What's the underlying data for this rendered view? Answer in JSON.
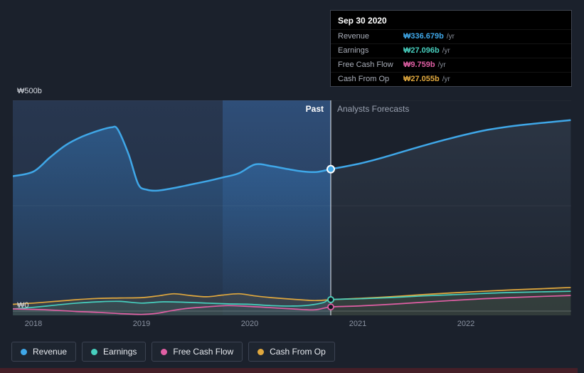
{
  "labels": {
    "past": "Past",
    "forecast": "Analysts Forecasts",
    "y_max": "₩500b",
    "y_zero": "₩0"
  },
  "tooltip": {
    "title": "Sep 30 2020",
    "rows": [
      {
        "label": "Revenue",
        "value": "₩336.679b",
        "suffix": "/yr",
        "series": "revenue"
      },
      {
        "label": "Earnings",
        "value": "₩27.096b",
        "suffix": "/yr",
        "series": "earnings"
      },
      {
        "label": "Free Cash Flow",
        "value": "₩9.759b",
        "suffix": "/yr",
        "series": "fcf"
      },
      {
        "label": "Cash From Op",
        "value": "₩27.055b",
        "suffix": "/yr",
        "series": "cashop"
      }
    ]
  },
  "legend": [
    {
      "label": "Revenue",
      "series": "revenue"
    },
    {
      "label": "Earnings",
      "series": "earnings"
    },
    {
      "label": "Free Cash Flow",
      "series": "fcf"
    },
    {
      "label": "Cash From Op",
      "series": "cashop"
    }
  ],
  "chart_data": {
    "type": "area",
    "x_axis": {
      "ticks": [
        "2018",
        "2019",
        "2020",
        "2021",
        "2022"
      ],
      "range": [
        2017.81,
        2022.97
      ]
    },
    "y_axis": {
      "range": [
        0,
        500
      ],
      "tick_labels": [
        "₩0",
        "₩500b"
      ],
      "units": "₩ billions per year"
    },
    "divider": {
      "date": "Sep 30 2020",
      "x": 2020.75
    },
    "highlight_band": {
      "start": 2019.75,
      "end": 2020.75
    },
    "grid_values": [
      500,
      250,
      0
    ],
    "series": [
      {
        "id": "revenue",
        "name": "Revenue",
        "color": "#3fa7e8",
        "marker_value": 336.679,
        "points": [
          [
            2017.81,
            320
          ],
          [
            2018.0,
            331
          ],
          [
            2018.15,
            364
          ],
          [
            2018.3,
            394
          ],
          [
            2018.45,
            414
          ],
          [
            2018.6,
            428
          ],
          [
            2018.72,
            436
          ],
          [
            2018.78,
            431
          ],
          [
            2018.88,
            372
          ],
          [
            2018.97,
            301
          ],
          [
            2019.05,
            288
          ],
          [
            2019.15,
            286
          ],
          [
            2019.3,
            292
          ],
          [
            2019.45,
            300
          ],
          [
            2019.6,
            308
          ],
          [
            2019.75,
            317
          ],
          [
            2019.9,
            327
          ],
          [
            2020.05,
            348
          ],
          [
            2020.2,
            344
          ],
          [
            2020.35,
            337
          ],
          [
            2020.5,
            331
          ],
          [
            2020.62,
            330
          ],
          [
            2020.75,
            336.679
          ],
          [
            2021.0,
            349
          ],
          [
            2021.2,
            362
          ],
          [
            2021.4,
            377
          ],
          [
            2021.6,
            392
          ],
          [
            2021.8,
            406
          ],
          [
            2022.0,
            419
          ],
          [
            2022.2,
            430
          ],
          [
            2022.4,
            438
          ],
          [
            2022.6,
            444
          ],
          [
            2022.8,
            449
          ],
          [
            2022.97,
            453
          ]
        ]
      },
      {
        "id": "earnings",
        "name": "Earnings",
        "color": "#47cfbe",
        "marker_value": 27.096,
        "points": [
          [
            2017.81,
            5
          ],
          [
            2018.0,
            9
          ],
          [
            2018.2,
            14
          ],
          [
            2018.4,
            19
          ],
          [
            2018.6,
            22
          ],
          [
            2018.8,
            23
          ],
          [
            2019.0,
            19
          ],
          [
            2019.2,
            22
          ],
          [
            2019.4,
            21
          ],
          [
            2019.6,
            19
          ],
          [
            2019.8,
            17
          ],
          [
            2020.0,
            16
          ],
          [
            2020.2,
            13
          ],
          [
            2020.4,
            12
          ],
          [
            2020.55,
            14
          ],
          [
            2020.68,
            20
          ],
          [
            2020.75,
            27.096
          ],
          [
            2021.0,
            29
          ],
          [
            2021.3,
            32
          ],
          [
            2021.6,
            36
          ],
          [
            2022.0,
            40
          ],
          [
            2022.4,
            44
          ],
          [
            2022.97,
            47
          ]
        ]
      },
      {
        "id": "fcf",
        "name": "Free Cash Flow",
        "color": "#e05fa4",
        "marker_value": 9.759,
        "points": [
          [
            2017.81,
            5
          ],
          [
            2018.0,
            4
          ],
          [
            2018.2,
            2
          ],
          [
            2018.4,
            -1
          ],
          [
            2018.6,
            -3
          ],
          [
            2018.8,
            -6
          ],
          [
            2019.0,
            -8
          ],
          [
            2019.15,
            -5
          ],
          [
            2019.3,
            2
          ],
          [
            2019.45,
            7
          ],
          [
            2019.6,
            10
          ],
          [
            2019.8,
            13
          ],
          [
            2020.0,
            11
          ],
          [
            2020.2,
            8
          ],
          [
            2020.4,
            5
          ],
          [
            2020.6,
            3
          ],
          [
            2020.75,
            9.759
          ],
          [
            2021.0,
            12
          ],
          [
            2021.3,
            16
          ],
          [
            2021.6,
            21
          ],
          [
            2022.0,
            27
          ],
          [
            2022.4,
            32
          ],
          [
            2022.97,
            37
          ]
        ]
      },
      {
        "id": "cashop",
        "name": "Cash From Op",
        "color": "#e0a83e",
        "marker_value": 27.055,
        "points": [
          [
            2017.81,
            16
          ],
          [
            2018.0,
            19
          ],
          [
            2018.2,
            23
          ],
          [
            2018.4,
            27
          ],
          [
            2018.6,
            30
          ],
          [
            2018.8,
            31
          ],
          [
            2019.0,
            32
          ],
          [
            2019.15,
            36
          ],
          [
            2019.3,
            41
          ],
          [
            2019.45,
            37
          ],
          [
            2019.6,
            34
          ],
          [
            2019.75,
            38
          ],
          [
            2019.9,
            41
          ],
          [
            2020.05,
            36
          ],
          [
            2020.2,
            32
          ],
          [
            2020.4,
            28
          ],
          [
            2020.6,
            25
          ],
          [
            2020.75,
            27.055
          ],
          [
            2021.0,
            30
          ],
          [
            2021.3,
            34
          ],
          [
            2021.6,
            39
          ],
          [
            2022.0,
            45
          ],
          [
            2022.4,
            50
          ],
          [
            2022.7,
            53
          ],
          [
            2022.97,
            56
          ]
        ]
      }
    ]
  }
}
